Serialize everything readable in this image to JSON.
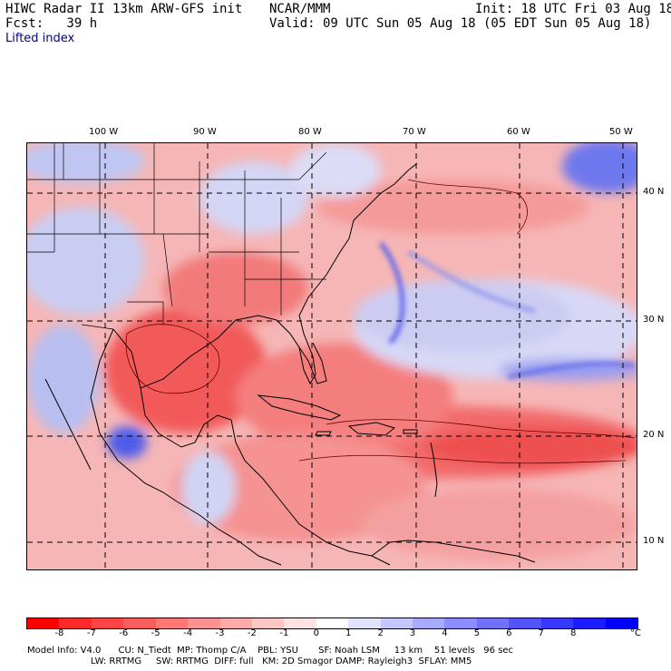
{
  "header": {
    "model_title": "HIWC Radar II 13km ARW-GFS init",
    "org": "NCAR/MMM",
    "init": "Init: 18 UTC Fri 03 Aug 18",
    "fcst": "Fcst:   39 h",
    "valid": "Valid: 09 UTC Sun 05 Aug 18 (05 EDT Sun 05 Aug 18)",
    "field": "Lifted index"
  },
  "map": {
    "lon_labels": [
      "100 W",
      "90 W",
      "80 W",
      "70 W",
      "60 W",
      "50 W"
    ],
    "lat_labels": [
      "40 N",
      "30 N",
      "20 N",
      "10 N"
    ]
  },
  "colorbar": {
    "tick_labels": [
      "-8",
      "-7",
      "-6",
      "-5",
      "-4",
      "-3",
      "-2",
      "-1",
      "0",
      "1",
      "2",
      "3",
      "4",
      "5",
      "6",
      "7",
      "8"
    ],
    "unit": "°C",
    "colors": [
      "#ff0000",
      "#ff2a2a",
      "#ff4444",
      "#ff5c5c",
      "#ff7777",
      "#ff9191",
      "#ffabab",
      "#ffc6c6",
      "#ffe2e2",
      "#ffffff",
      "#e2e2ff",
      "#c6c6ff",
      "#a9a9ff",
      "#8d8dff",
      "#7171ff",
      "#5454ff",
      "#3838ff",
      "#1c1cff",
      "#0000ff"
    ]
  },
  "footer": {
    "line1": "Model Info: V4.0      CU: N_Tiedt  MP: Thomp C/A    PBL: YSU       SF: Noah LSM     13 km    51 levels   96 sec",
    "line2": "                      LW: RRTMG     SW: RRTMG  DIFF: full   KM: 2D Smagor DAMP: Rayleigh3  SFLAY: MM5"
  }
}
